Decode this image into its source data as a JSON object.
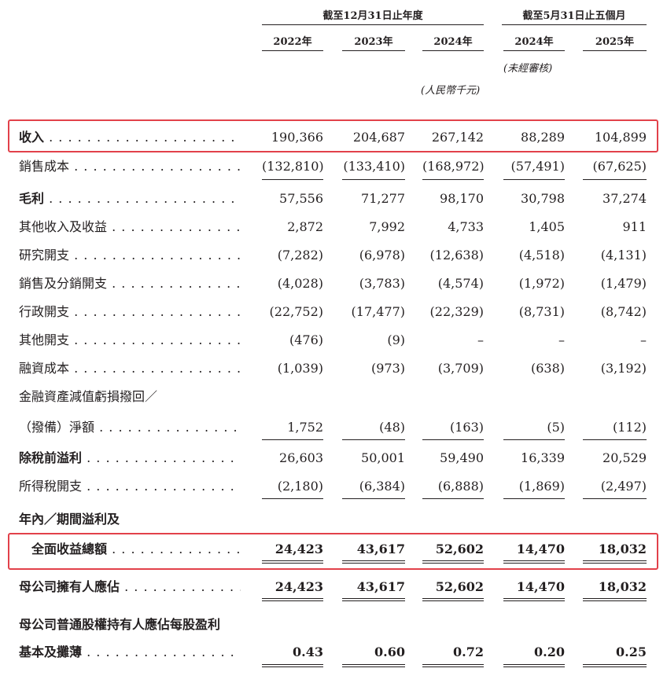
{
  "header": {
    "group1_title": "截至12月31日止年度",
    "group2_title": "截至5月31日止五個月",
    "years": [
      "2022年",
      "2023年",
      "2024年",
      "2024年",
      "2025年"
    ],
    "unaudited_note": "(未經審核)",
    "unit_note": "(人民幣千元)"
  },
  "rows": [
    {
      "label": "收入",
      "values": [
        "190,366",
        "204,687",
        "267,142",
        "88,289",
        "104,899"
      ]
    },
    {
      "label": "銷售成本",
      "values": [
        "(132,810)",
        "(133,410)",
        "(168,972)",
        "(57,491)",
        "(67,625)"
      ]
    },
    {
      "label": "毛利",
      "values": [
        "57,556",
        "71,277",
        "98,170",
        "30,798",
        "37,274"
      ]
    },
    {
      "label": "其他收入及收益",
      "values": [
        "2,872",
        "7,992",
        "4,733",
        "1,405",
        "911"
      ]
    },
    {
      "label": "研究開支",
      "values": [
        "(7,282)",
        "(6,978)",
        "(12,638)",
        "(4,518)",
        "(4,131)"
      ]
    },
    {
      "label": "銷售及分銷開支",
      "values": [
        "(4,028)",
        "(3,783)",
        "(4,574)",
        "(1,972)",
        "(1,479)"
      ]
    },
    {
      "label": "行政開支",
      "values": [
        "(22,752)",
        "(17,477)",
        "(22,329)",
        "(8,731)",
        "(8,742)"
      ]
    },
    {
      "label": "其他開支",
      "values": [
        "(476)",
        "(9)",
        "–",
        "–",
        "–"
      ]
    },
    {
      "label": "融資成本",
      "values": [
        "(1,039)",
        "(973)",
        "(3,709)",
        "(638)",
        "(3,192)"
      ]
    },
    {
      "label": "金融資產減值虧損撥回／",
      "values": []
    },
    {
      "label": "（撥備）淨額",
      "values": [
        "1,752",
        "(48)",
        "(163)",
        "(5)",
        "(112)"
      ]
    },
    {
      "label": "除稅前溢利",
      "values": [
        "26,603",
        "50,001",
        "59,490",
        "16,339",
        "20,529"
      ]
    },
    {
      "label": "所得稅開支",
      "values": [
        "(2,180)",
        "(6,384)",
        "(6,888)",
        "(1,869)",
        "(2,497)"
      ]
    },
    {
      "label": "年內／期間溢利及",
      "values": []
    },
    {
      "label": "全面收益總額",
      "values": [
        "24,423",
        "43,617",
        "52,602",
        "14,470",
        "18,032"
      ]
    },
    {
      "label": "母公司擁有人應佔",
      "values": [
        "24,423",
        "43,617",
        "52,602",
        "14,470",
        "18,032"
      ]
    },
    {
      "label": "母公司普通股權持有人應佔每股盈利",
      "values": []
    },
    {
      "label": "基本及攤薄",
      "values": [
        "0.43",
        "0.60",
        "0.72",
        "0.20",
        "0.25"
      ]
    }
  ],
  "highlight_color": "#e2414a"
}
